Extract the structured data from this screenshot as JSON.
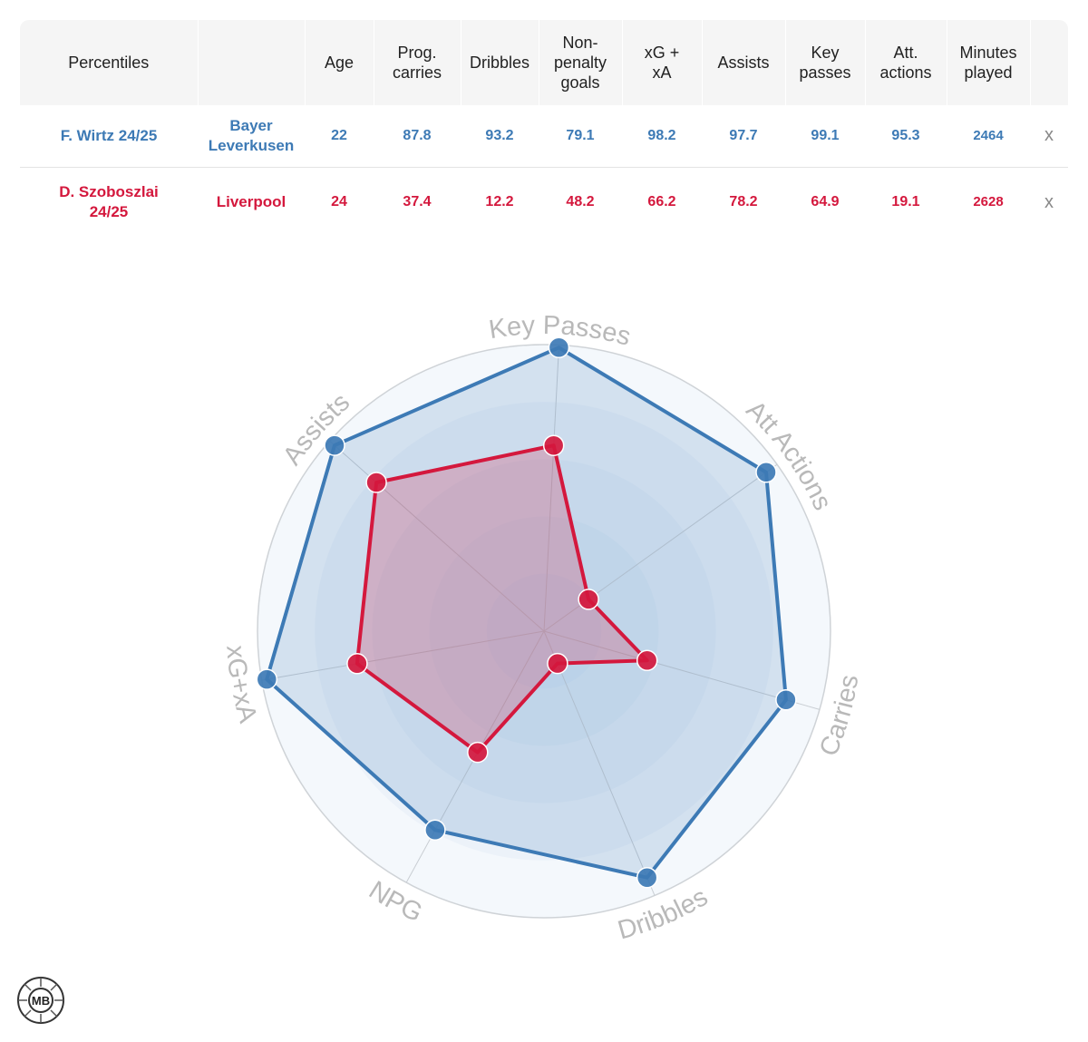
{
  "table": {
    "headers": [
      "Percentiles",
      "",
      "Age",
      "Prog. carries",
      "Dribbles",
      "Non-penalty goals",
      "xG + xA",
      "Assists",
      "Key passes",
      "Att. actions",
      "Minutes played",
      ""
    ],
    "header_lines": [
      [
        "Percentiles"
      ],
      [
        ""
      ],
      [
        "Age"
      ],
      [
        "Prog.",
        "carries"
      ],
      [
        "Dribbles"
      ],
      [
        "Non-",
        "penalty",
        "goals"
      ],
      [
        "xG +",
        "xA"
      ],
      [
        "Assists"
      ],
      [
        "Key",
        "passes"
      ],
      [
        "Att.",
        "actions"
      ],
      [
        "Minutes",
        "played"
      ],
      [
        ""
      ]
    ],
    "remove_label": "x",
    "rows": [
      {
        "player": "F. Wirtz 24/25",
        "player_lines": [
          "F. Wirtz 24/25"
        ],
        "team_lines": [
          "Bayer",
          "Leverkusen"
        ],
        "age": "22",
        "prog_carries": "87.8",
        "dribbles": "93.2",
        "np_goals": "79.1",
        "xg_xa": "98.2",
        "assists": "97.7",
        "key_passes": "99.1",
        "att_actions": "95.3",
        "minutes": "2464",
        "color": "#3d7ab5"
      },
      {
        "player": "D. Szoboszlai 24/25",
        "player_lines": [
          "D. Szoboszlai",
          "24/25"
        ],
        "team_lines": [
          "Liverpool"
        ],
        "age": "24",
        "prog_carries": "37.4",
        "dribbles": "12.2",
        "np_goals": "48.2",
        "xg_xa": "66.2",
        "assists": "78.2",
        "key_passes": "64.9",
        "att_actions": "19.1",
        "minutes": "2628",
        "color": "#d4183d"
      }
    ]
  },
  "chart_data": {
    "type": "radar",
    "axes": [
      "Key Passes",
      "Att Actions",
      "Carries",
      "Dribbles",
      "NPG",
      "xG+xA",
      "Assists"
    ],
    "range": [
      0,
      100
    ],
    "series": [
      {
        "name": "F. Wirtz 24/25",
        "color": "#3d7ab5",
        "values": [
          99.1,
          95.3,
          87.8,
          93.2,
          79.1,
          98.2,
          97.7
        ]
      },
      {
        "name": "D. Szoboszlai 24/25",
        "color": "#d4183d",
        "values": [
          64.9,
          19.1,
          37.4,
          12.2,
          48.2,
          66.2,
          78.2
        ]
      }
    ]
  },
  "logo": {
    "icon": "mb-football-logo-icon",
    "text": "MB"
  }
}
